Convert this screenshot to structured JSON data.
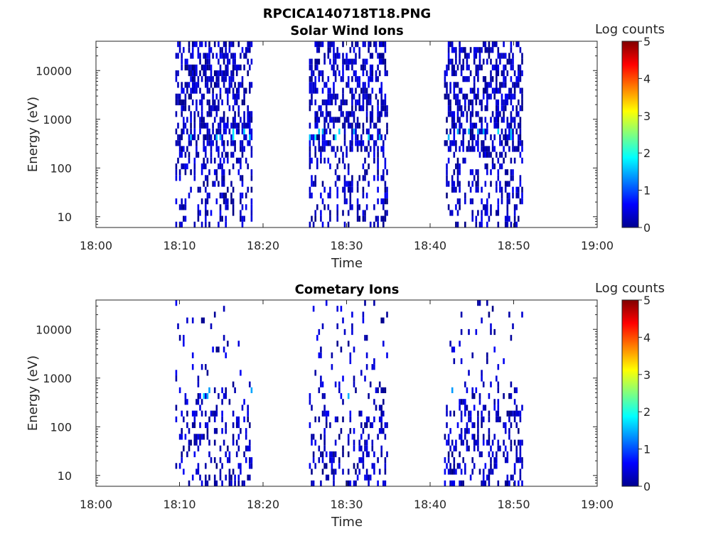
{
  "figure_title": "RPCICA140718T18.PNG",
  "chart_data": [
    {
      "type": "heatmap",
      "title": "Solar Wind Ions",
      "xlabel": "Time",
      "ylabel": "Energy (eV)",
      "x_ticks": [
        "18:00",
        "18:10",
        "18:20",
        "18:30",
        "18:40",
        "18:50",
        "19:00"
      ],
      "x_range_minutes": [
        0,
        60
      ],
      "y_scale": "log",
      "y_ticks": [
        "10",
        "100",
        "1000",
        "10000"
      ],
      "y_range": [
        6,
        40000
      ],
      "colorbar": {
        "label": "Log counts",
        "range": [
          0,
          5
        ],
        "ticks": [
          "0",
          "1",
          "2",
          "3",
          "4",
          "5"
        ],
        "colormap": "jet"
      },
      "data_intervals": [
        {
          "start": "18:09:30",
          "end": "18:18:40"
        },
        {
          "start": "18:25:30",
          "end": "18:34:50"
        },
        {
          "start": "18:41:40",
          "end": "18:51:00"
        }
      ],
      "typical_log_counts": [
        0,
        0.6
      ],
      "peak_log_counts": 1.9,
      "peak_energy_ev": 500,
      "density": "high"
    },
    {
      "type": "heatmap",
      "title": "Cometary Ions",
      "xlabel": "Time",
      "ylabel": "Energy (eV)",
      "x_ticks": [
        "18:00",
        "18:10",
        "18:20",
        "18:30",
        "18:40",
        "18:50",
        "19:00"
      ],
      "x_range_minutes": [
        0,
        60
      ],
      "y_scale": "log",
      "y_ticks": [
        "10",
        "100",
        "1000",
        "10000"
      ],
      "y_range": [
        6,
        40000
      ],
      "colorbar": {
        "label": "Log counts",
        "range": [
          0,
          5
        ],
        "ticks": [
          "0",
          "1",
          "2",
          "3",
          "4",
          "5"
        ],
        "colormap": "jet"
      },
      "data_intervals": [
        {
          "start": "18:09:30",
          "end": "18:18:40"
        },
        {
          "start": "18:25:30",
          "end": "18:34:50"
        },
        {
          "start": "18:41:40",
          "end": "18:51:00"
        }
      ],
      "typical_log_counts": [
        0,
        0.6
      ],
      "peak_log_counts": 1.8,
      "peak_energy_ev": 500,
      "density": "sparse"
    }
  ]
}
